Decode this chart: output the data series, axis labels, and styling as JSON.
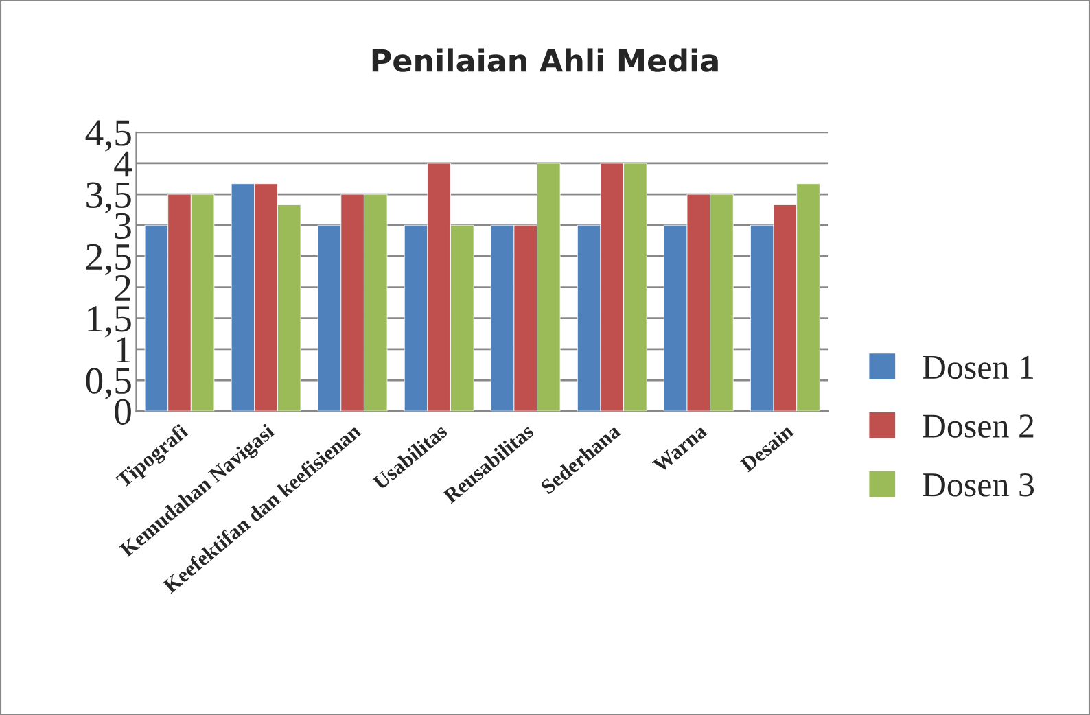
{
  "chart_data": {
    "type": "bar",
    "title": "Penilaian Ahli Media",
    "categories": [
      "Tipografi",
      "Kemudahan Navigasi",
      "Keefektifan dan keefisienan",
      "Usabilitas",
      "Reusabilitas",
      "Sederhana",
      "Warna",
      "Desain"
    ],
    "series": [
      {
        "name": "Dosen 1",
        "color": "#4f81bd",
        "values": [
          3,
          3.67,
          3,
          3,
          3,
          3,
          3,
          3
        ]
      },
      {
        "name": "Dosen 2",
        "color": "#c0504d",
        "values": [
          3.5,
          3.67,
          3.5,
          4,
          3,
          4,
          3.5,
          3.33
        ]
      },
      {
        "name": "Dosen 3",
        "color": "#9bbb59",
        "values": [
          3.5,
          3.33,
          3.5,
          3,
          4,
          4,
          3.5,
          3.67
        ]
      }
    ],
    "ylim": [
      0,
      4.5
    ],
    "yticks": [
      0,
      {
        "value": 0.5,
        "label": "0,5"
      },
      1,
      {
        "value": 1.5,
        "label": "1,5"
      },
      2,
      {
        "value": 2.5,
        "label": "2,5"
      },
      3,
      {
        "value": 3.5,
        "label": "3,5"
      },
      4,
      {
        "value": 4.5,
        "label": "4,5"
      }
    ],
    "grid": "y",
    "legend": "right"
  }
}
